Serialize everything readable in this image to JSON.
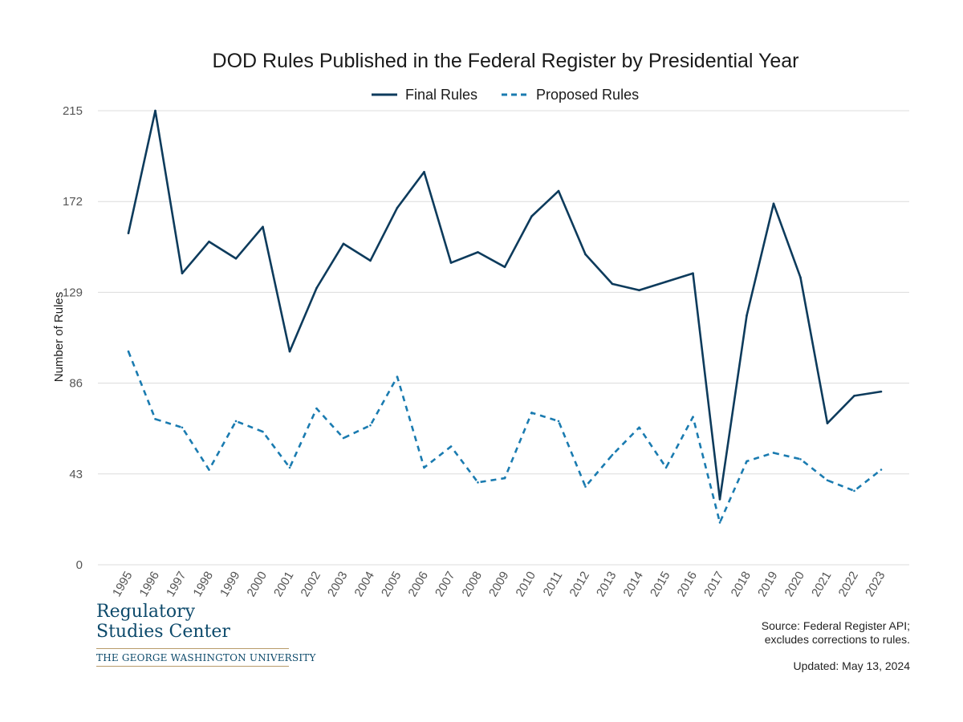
{
  "chart_data": {
    "type": "line",
    "title": "DOD Rules Published in the Federal Register by Presidential Year",
    "xlabel": "",
    "ylabel": "Number of Rules",
    "ylim": [
      0,
      215
    ],
    "yticks": [
      "0",
      "43",
      "86",
      "129",
      "172",
      "215"
    ],
    "categories": [
      "1995",
      "1996",
      "1997",
      "1998",
      "1999",
      "2000",
      "2001",
      "2002",
      "2003",
      "2004",
      "2005",
      "2006",
      "2007",
      "2008",
      "2009",
      "2010",
      "2011",
      "2012",
      "2013",
      "2014",
      "2015",
      "2016",
      "2017",
      "2018",
      "2019",
      "2020",
      "2021",
      "2022",
      "2023"
    ],
    "series": [
      {
        "name": "Final Rules",
        "color": "#0d3b5c",
        "style": "solid",
        "values": [
          157,
          215,
          138,
          153,
          145,
          160,
          101,
          131,
          152,
          144,
          169,
          186,
          143,
          148,
          141,
          165,
          177,
          147,
          133,
          130,
          134,
          138,
          31,
          118,
          171,
          136,
          67,
          80,
          82
        ]
      },
      {
        "name": "Proposed Rules",
        "color": "#1a7bb0",
        "style": "dashed",
        "values": [
          101,
          69,
          65,
          45,
          68,
          63,
          46,
          74,
          60,
          66,
          89,
          46,
          56,
          39,
          41,
          72,
          68,
          37,
          52,
          65,
          46,
          70,
          20,
          49,
          53,
          50,
          40,
          35,
          45
        ]
      }
    ],
    "legend_position": "top-center",
    "grid": true
  },
  "logo": {
    "line1": "Regulatory",
    "line2": "Studies Center",
    "university": "THE GEORGE WASHINGTON UNIVERSITY"
  },
  "source": {
    "line1": "Source: Federal Register API;",
    "line2": "excludes corrections to rules."
  },
  "updated": "Updated: May 13, 2024"
}
